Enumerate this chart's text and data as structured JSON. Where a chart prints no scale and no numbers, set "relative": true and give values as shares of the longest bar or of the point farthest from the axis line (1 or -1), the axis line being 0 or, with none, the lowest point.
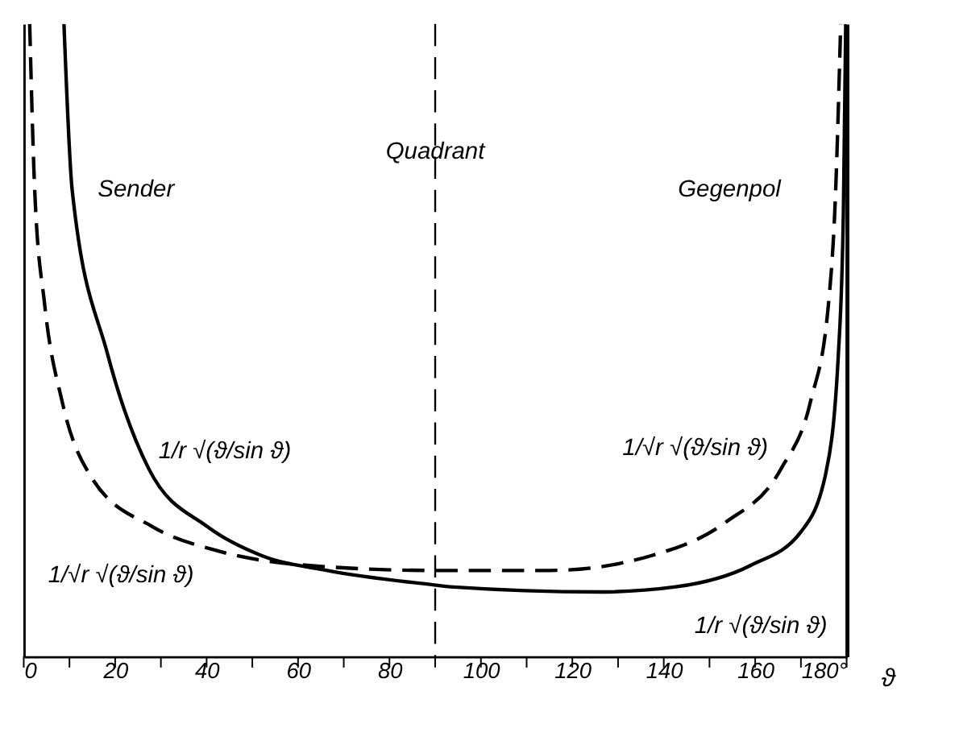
{
  "chart_data": {
    "type": "line",
    "relative": true,
    "xlabel": "ϑ",
    "xlim": [
      0,
      180
    ],
    "xticks": [
      0,
      {
        "value": 10,
        "label": null
      },
      20,
      {
        "value": 30,
        "label": null
      },
      40,
      {
        "value": 50,
        "label": null
      },
      60,
      {
        "value": 70,
        "label": null
      },
      80,
      {
        "value": 90,
        "label": null
      },
      100,
      {
        "value": 110,
        "label": null
      },
      120,
      {
        "value": 130,
        "label": null
      },
      140,
      {
        "value": 150,
        "label": null
      },
      160,
      {
        "value": 170,
        "label": null
      },
      {
        "value": 180,
        "label": "180°"
      }
    ],
    "series": [
      {
        "color": "#000000",
        "line_style": "solid",
        "x": [
          8.8,
          10.6,
          18.3,
          27.4,
          40.2,
          52.2,
          66.4,
          89.8,
          93.3,
          126,
          142.6,
          159,
          170,
          175.4,
          178.2,
          179.3,
          179.8
        ],
        "values": [
          1,
          0.737,
          0.479,
          0.296,
          0.205,
          0.159,
          0.136,
          0.113,
          0.11,
          0.102,
          0.11,
          0.144,
          0.197,
          0.288,
          0.479,
          0.707,
          1
        ]
      },
      {
        "color": "#000000",
        "line_style": "dashed",
        "x": [
          1.3,
          2.4,
          4.6,
          8.4,
          15,
          28.2,
          42.4,
          62.1,
          89.8,
          115.2,
          137.1,
          153.5,
          165.6,
          172.1,
          176,
          177.6,
          178.7
        ],
        "values": [
          1,
          0.737,
          0.555,
          0.403,
          0.281,
          0.205,
          0.167,
          0.144,
          0.136,
          0.136,
          0.159,
          0.212,
          0.296,
          0.403,
          0.555,
          0.737,
          1
        ]
      }
    ],
    "ref_lines": [
      {
        "axis": "x",
        "value": 90,
        "label": "Quadrant",
        "line_style": "dashed"
      }
    ],
    "annotations": [
      "Sender",
      "Gegenpol",
      {
        "text": "1/r √(ϑ/sin ϑ)",
        "x": 27.4,
        "y": 0.296
      },
      {
        "text": "1/√r √(ϑ/sin ϑ)",
        "x": 28.2,
        "y": 0.205
      },
      {
        "text": "1/√r √(ϑ/sin ϑ)",
        "x": 165.6,
        "y": 0.296
      },
      {
        "text": "1/r √(ϑ/sin ϑ)",
        "x": 155,
        "y": 0.13
      }
    ],
    "grid": false
  }
}
